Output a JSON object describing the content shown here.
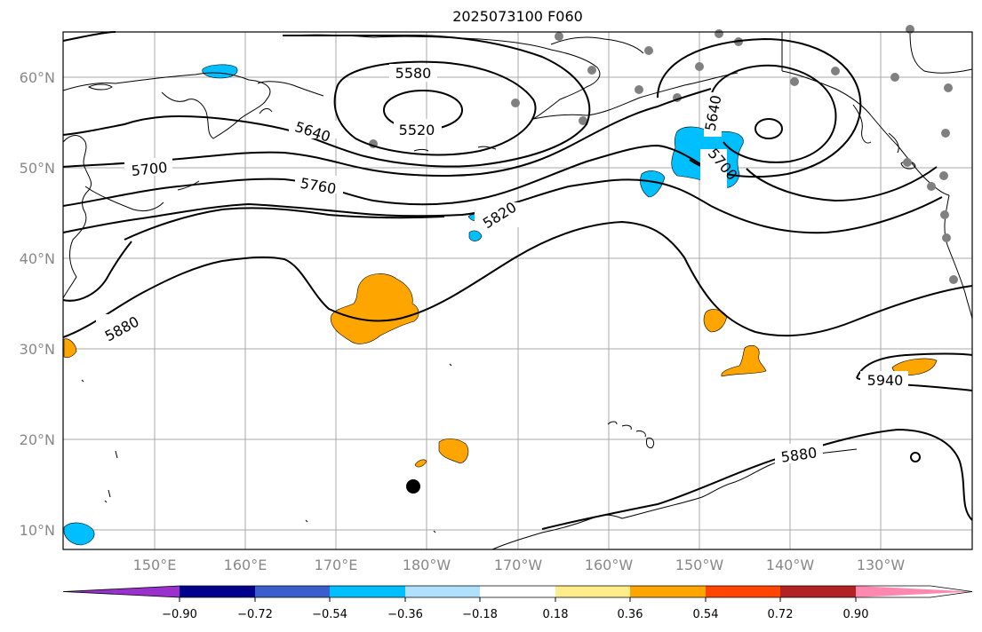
{
  "map": {
    "title": "2025073100 F060",
    "lat_labels": [
      "60°N",
      "50°N",
      "40°N",
      "30°N",
      "20°N",
      "10°N"
    ],
    "lon_labels": [
      "150°E",
      "160°E",
      "170°E",
      "180°W",
      "170°W",
      "160°W",
      "150°W",
      "140°W",
      "130°W"
    ],
    "contour_labels": [
      "5520",
      "5580",
      "5640",
      "5640",
      "5700",
      "5700",
      "5760",
      "5820",
      "5880",
      "5880",
      "5940"
    ],
    "shading_colors": {
      "positive": "#ffa500",
      "negative": "#00bfff"
    }
  },
  "colorbar": {
    "tick_labels": [
      "−0.90",
      "−0.72",
      "−0.54",
      "−0.36",
      "−0.18",
      "0.18",
      "0.36",
      "0.54",
      "0.72",
      "0.90"
    ],
    "colors": [
      "#9932cc",
      "#00008b",
      "#3a5fcd",
      "#00bfff",
      "#afe1ff",
      "#ffffff",
      "#ffec8b",
      "#ffa500",
      "#ff4500",
      "#b22222",
      "#ff88b0"
    ]
  }
}
